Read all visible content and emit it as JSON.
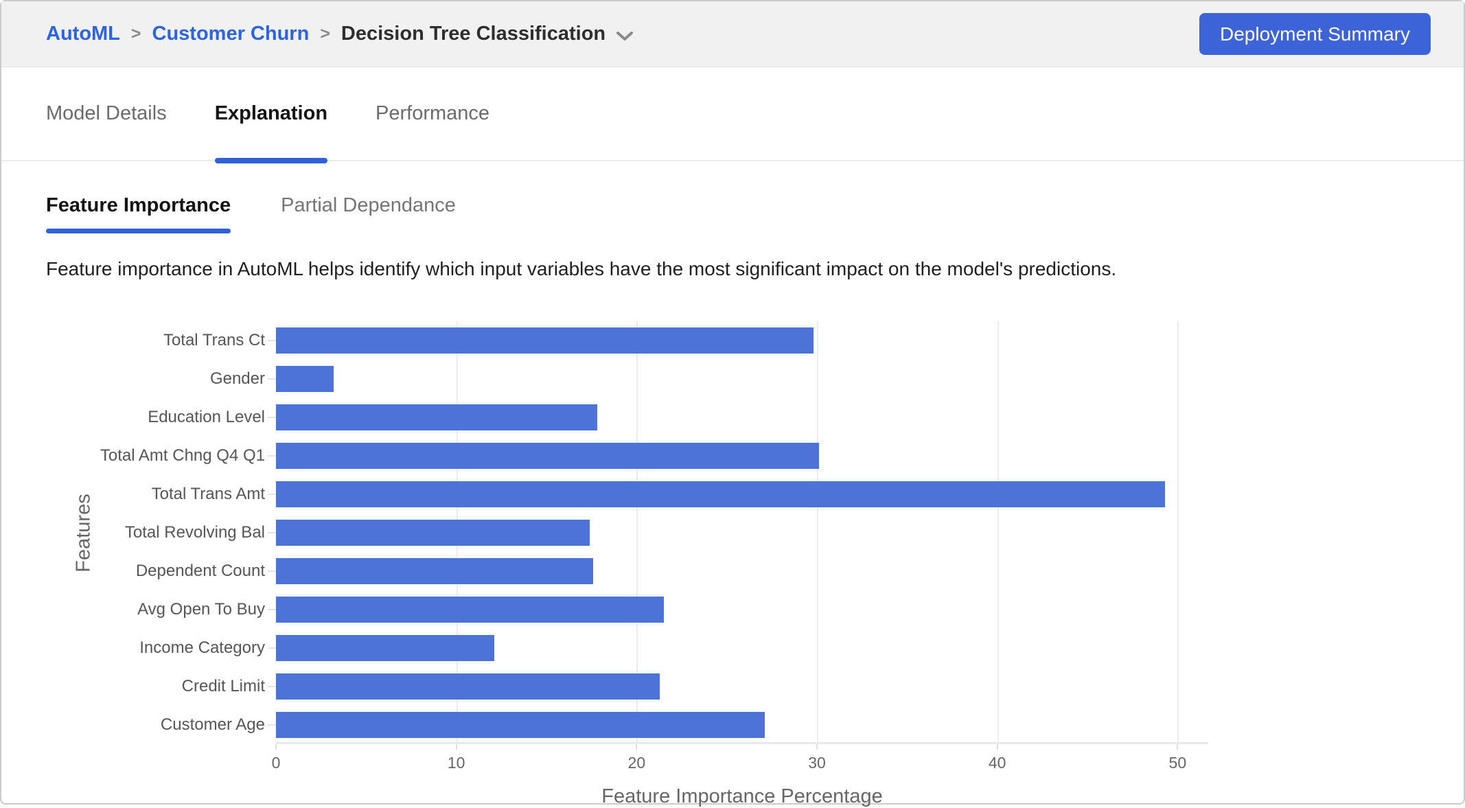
{
  "header": {
    "separator": ">",
    "breadcrumb": [
      {
        "label": "AutoML",
        "link": true
      },
      {
        "label": "Customer Churn",
        "link": true
      },
      {
        "label": "Decision Tree Classification",
        "link": false
      }
    ],
    "deploy_button": "Deployment Summary"
  },
  "tabs": [
    {
      "label": "Model Details",
      "active": false
    },
    {
      "label": "Explanation",
      "active": true
    },
    {
      "label": "Performance",
      "active": false
    }
  ],
  "subtabs": [
    {
      "label": "Feature Importance",
      "active": true
    },
    {
      "label": "Partial Dependance",
      "active": false
    }
  ],
  "description": "Feature importance in AutoML helps identify which input variables have the most significant impact on the model's predictions.",
  "colors": {
    "link_blue": "#2c63e0",
    "button_blue": "#3c63d8",
    "underline_blue": "#3061d9",
    "bar_blue": "#4e73d8"
  },
  "icons": {
    "model_dropdown": "chevron-down-icon"
  },
  "chart_data": {
    "type": "bar",
    "orientation": "horizontal",
    "categories": [
      "Total Trans Ct",
      "Gender",
      "Education Level",
      "Total Amt Chng Q4 Q1",
      "Total Trans Amt",
      "Total Revolving Bal",
      "Dependent Count",
      "Avg Open To Buy",
      "Income Category",
      "Credit Limit",
      "Customer Age"
    ],
    "values": [
      29.8,
      3.2,
      17.8,
      30.1,
      49.3,
      17.4,
      17.6,
      21.5,
      12.1,
      21.3,
      27.1
    ],
    "xlabel": "Feature Importance Percentage",
    "ylabel": "Features",
    "xticks": [
      0,
      10,
      20,
      30,
      40,
      50
    ],
    "xlim": [
      0,
      51.7
    ],
    "grid": true,
    "legend": "none",
    "bar_color": "#4e73d8"
  }
}
